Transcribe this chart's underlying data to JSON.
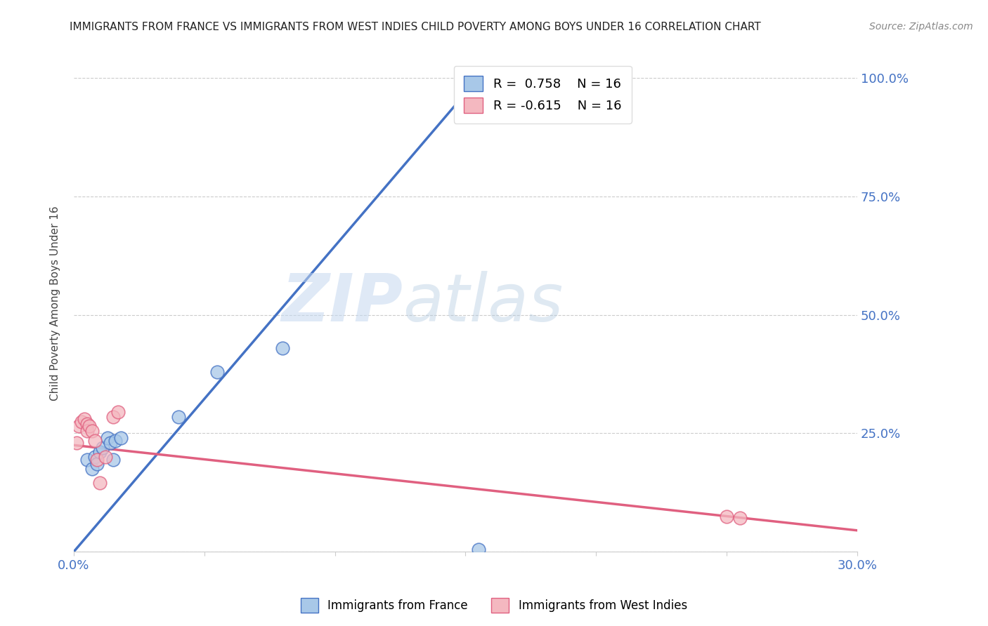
{
  "title": "IMMIGRANTS FROM FRANCE VS IMMIGRANTS FROM WEST INDIES CHILD POVERTY AMONG BOYS UNDER 16 CORRELATION CHART",
  "source": "Source: ZipAtlas.com",
  "ylabel": "Child Poverty Among Boys Under 16",
  "xlim": [
    0.0,
    0.3
  ],
  "ylim": [
    0.0,
    1.05
  ],
  "france_color": "#a8c8e8",
  "west_indies_color": "#f4b8c0",
  "france_line_color": "#4472c4",
  "west_indies_line_color": "#e06080",
  "legend_france_r": "0.758",
  "legend_france_n": "16",
  "legend_wi_r": "-0.615",
  "legend_wi_n": "16",
  "watermark_zip": "ZIP",
  "watermark_atlas": "atlas",
  "background_color": "#ffffff",
  "grid_color": "#cccccc",
  "title_fontsize": 11,
  "tick_label_color": "#4472c4",
  "france_scatter_x": [
    0.005,
    0.007,
    0.008,
    0.009,
    0.01,
    0.011,
    0.013,
    0.014,
    0.015,
    0.016,
    0.018,
    0.04,
    0.055,
    0.08,
    0.155,
    0.155
  ],
  "france_scatter_y": [
    0.195,
    0.175,
    0.2,
    0.185,
    0.21,
    0.22,
    0.24,
    0.23,
    0.195,
    0.235,
    0.24,
    0.285,
    0.38,
    0.43,
    0.97,
    0.005
  ],
  "wi_scatter_x": [
    0.001,
    0.002,
    0.003,
    0.004,
    0.005,
    0.005,
    0.006,
    0.007,
    0.008,
    0.009,
    0.01,
    0.012,
    0.015,
    0.017,
    0.25,
    0.255
  ],
  "wi_scatter_y": [
    0.23,
    0.265,
    0.275,
    0.28,
    0.27,
    0.255,
    0.265,
    0.255,
    0.235,
    0.195,
    0.145,
    0.2,
    0.285,
    0.295,
    0.075,
    0.072
  ],
  "france_line_x0": 0.0,
  "france_line_y0": 0.0,
  "france_line_x1": 0.155,
  "france_line_y1": 1.0,
  "wi_line_x0": 0.0,
  "wi_line_y0": 0.225,
  "wi_line_x1": 0.3,
  "wi_line_y1": 0.045
}
